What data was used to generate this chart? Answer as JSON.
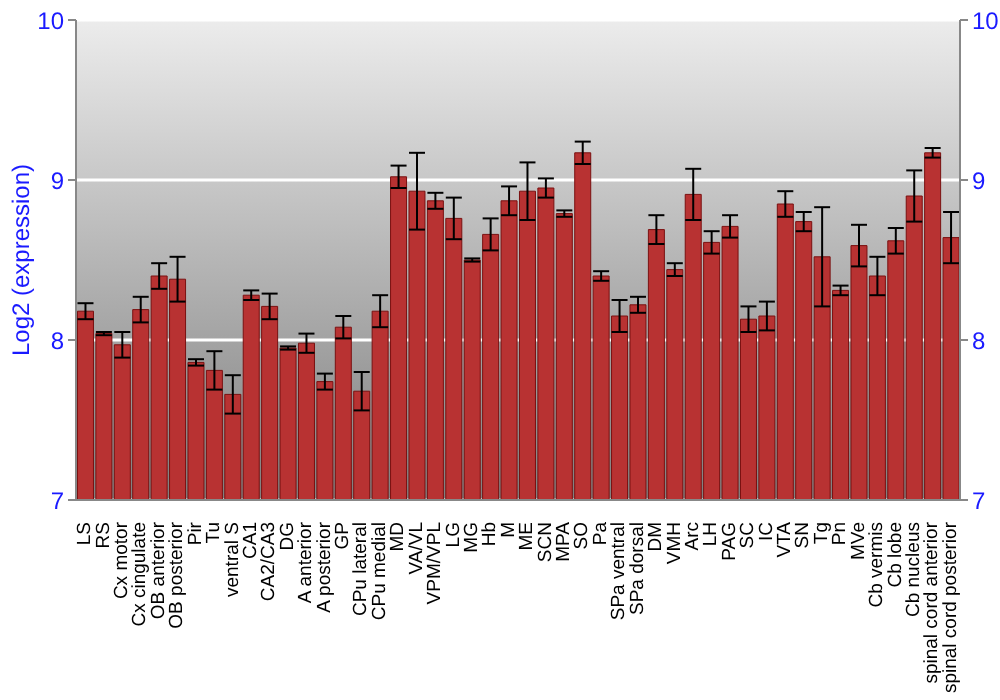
{
  "chart_data": {
    "type": "bar",
    "ylabel": "Log2 (expression)",
    "categories": [
      "LS",
      "RS",
      "Cx motor",
      "Cx cingulate",
      "OB anterior",
      "OB posterior",
      "Pir",
      "Tu",
      "ventral S",
      "CA1",
      "CA2/CA3",
      "DG",
      "A anterior",
      "A posterior",
      "GP",
      "CPu lateral",
      "CPu medial",
      "MD",
      "VA/VL",
      "VPM/VPL",
      "LG",
      "MG",
      "Hb",
      "M",
      "ME",
      "SCN",
      "MPA",
      "SO",
      "Pa",
      "SPa ventral",
      "SPa dorsal",
      "DM",
      "VMH",
      "Arc",
      "LH",
      "PAG",
      "SC",
      "IC",
      "VTA",
      "SN",
      "Tg",
      "Pn",
      "MVe",
      "Cb vermis",
      "Cb lobe",
      "Cb nucleus",
      "spinal cord anterior",
      "spinal cord posterior"
    ],
    "values": [
      8.18,
      8.04,
      7.97,
      8.19,
      8.4,
      8.38,
      7.86,
      7.81,
      7.66,
      8.28,
      8.21,
      7.95,
      7.98,
      7.74,
      8.08,
      7.68,
      8.18,
      9.02,
      8.93,
      8.87,
      8.76,
      8.5,
      8.66,
      8.87,
      8.93,
      8.95,
      8.79,
      9.17,
      8.4,
      8.15,
      8.22,
      8.69,
      8.44,
      8.91,
      8.61,
      8.71,
      8.13,
      8.15,
      8.85,
      8.74,
      8.52,
      8.31,
      8.59,
      8.4,
      8.62,
      8.9,
      9.17,
      8.64
    ],
    "errors": [
      0.05,
      0.01,
      0.08,
      0.08,
      0.08,
      0.14,
      0.02,
      0.12,
      0.12,
      0.03,
      0.08,
      0.01,
      0.06,
      0.05,
      0.07,
      0.12,
      0.1,
      0.07,
      0.24,
      0.05,
      0.13,
      0.01,
      0.1,
      0.09,
      0.18,
      0.06,
      0.02,
      0.07,
      0.03,
      0.1,
      0.05,
      0.09,
      0.04,
      0.16,
      0.07,
      0.07,
      0.08,
      0.09,
      0.08,
      0.06,
      0.31,
      0.03,
      0.13,
      0.12,
      0.08,
      0.16,
      0.03,
      0.16
    ],
    "color": "#b83232",
    "ylim": [
      7,
      10
    ],
    "yticks": [
      7,
      8,
      9,
      10
    ],
    "y2lim": [
      7,
      10
    ],
    "y2ticks": [
      7,
      8,
      9,
      10
    ],
    "grid": "y"
  }
}
